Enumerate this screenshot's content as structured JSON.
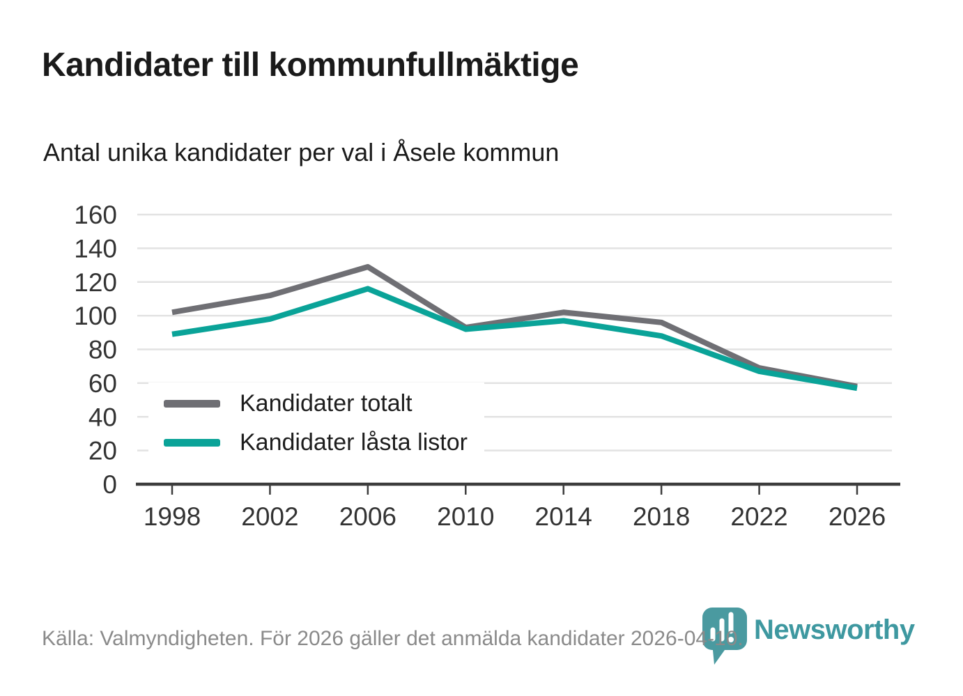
{
  "title": "Kandidater till kommunfullmäktige",
  "subtitle": "Antal unika kandidater per val i Åsele kommun",
  "footer": {
    "source_text": "Källa: Valmyndigheten. För 2026 gäller det anmälda kandidater 2026-04-10."
  },
  "branding": {
    "logo_text": "Newsworthy",
    "logo_icon": "newsworthy-pin-bar-chart-icon",
    "logo_color": "#4A9AA0",
    "logo_text_color": "#3E98A0"
  },
  "colors": {
    "background": "#FFFFFF",
    "title_text": "#1A1A1A",
    "axis_line": "#3C3C3C",
    "gridline": "#E2E2E2",
    "axis_label": "#333333",
    "footer_text": "#8A8A8A"
  },
  "chart_data": {
    "type": "line",
    "title": "Kandidater till kommunfullmäktige",
    "subtitle": "Antal unika kandidater per val i Åsele kommun",
    "categories": [
      "1998",
      "2002",
      "2006",
      "2010",
      "2014",
      "2018",
      "2022",
      "2026"
    ],
    "series": [
      {
        "name": "Kandidater totalt",
        "color": "#6F6F74",
        "values": [
          102,
          112,
          129,
          93,
          102,
          96,
          69,
          58
        ]
      },
      {
        "name": "Kandidater låsta listor",
        "color": "#0AA398",
        "values": [
          89,
          98,
          116,
          92,
          97,
          88,
          67,
          57
        ]
      }
    ],
    "xlabel": "",
    "ylabel": "",
    "ylim": [
      0,
      160
    ],
    "ytick_interval": 20,
    "grid": true,
    "legend_position": "inside-bottom-left"
  }
}
